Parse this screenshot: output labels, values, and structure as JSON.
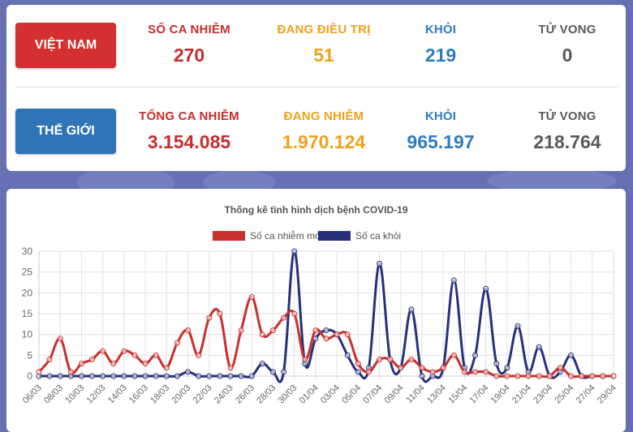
{
  "colors": {
    "red": "#c9302c",
    "navy": "#27307a",
    "vn_btn": "#d3302f",
    "world_btn": "#2f75b5"
  },
  "vietnam": {
    "label": "VIỆT NAM",
    "stats": [
      {
        "label": "SỐ CA NHIỄM",
        "value": "270"
      },
      {
        "label": "ĐANG ĐIỀU TRỊ",
        "value": "51"
      },
      {
        "label": "KHỎI",
        "value": "219"
      },
      {
        "label": "TỬ VONG",
        "value": "0"
      }
    ]
  },
  "world": {
    "label": "THẾ GIỚI",
    "stats": [
      {
        "label": "TỔNG CA NHIỄM",
        "value": "3.154.085"
      },
      {
        "label": "ĐANG NHIỄM",
        "value": "1.970.124"
      },
      {
        "label": "KHỎI",
        "value": "965.197"
      },
      {
        "label": "TỬ VONG",
        "value": "218.764"
      }
    ]
  },
  "chart_data": {
    "type": "line",
    "title": "Thống kê tình hình dịch bệnh COVID-19",
    "ylim": [
      0,
      30
    ],
    "yticks": [
      0,
      5,
      10,
      15,
      20,
      25,
      30
    ],
    "grid": true,
    "legend_position": "top",
    "x": [
      "06/03",
      "07/03",
      "08/03",
      "09/03",
      "10/03",
      "11/03",
      "12/03",
      "13/03",
      "14/03",
      "15/03",
      "16/03",
      "17/03",
      "18/03",
      "19/03",
      "20/03",
      "21/03",
      "22/03",
      "23/03",
      "24/03",
      "25/03",
      "26/03",
      "27/03",
      "28/03",
      "29/03",
      "30/03",
      "31/03",
      "01/04",
      "02/04",
      "03/04",
      "04/04",
      "05/04",
      "06/04",
      "07/04",
      "08/04",
      "09/04",
      "10/04",
      "11/04",
      "12/04",
      "13/04",
      "14/04",
      "15/04",
      "16/04",
      "17/04",
      "18/04",
      "19/04",
      "20/04",
      "21/04",
      "22/04",
      "23/04",
      "24/04",
      "25/04",
      "26/04",
      "27/04",
      "28/04",
      "29/04"
    ],
    "xtick_labels": [
      "06/03",
      "08/03",
      "10/03",
      "12/03",
      "14/03",
      "16/03",
      "18/03",
      "20/03",
      "22/03",
      "24/03",
      "26/03",
      "28/03",
      "30/03",
      "01/04",
      "03/04",
      "05/04",
      "07/04",
      "09/04",
      "11/04",
      "13/04",
      "15/04",
      "17/04",
      "19/04",
      "21/04",
      "23/04",
      "25/04",
      "27/04",
      "29/04"
    ],
    "series": [
      {
        "name": "Số ca nhiễm mới",
        "color": "#c9302c",
        "values": [
          1,
          4,
          9,
          1,
          3,
          4,
          6,
          3,
          6,
          5,
          3,
          5,
          2,
          8,
          11,
          5,
          14,
          15,
          2,
          11,
          19,
          10,
          11,
          14,
          15,
          4,
          11,
          9,
          10,
          10,
          3,
          1,
          4,
          4,
          2,
          4,
          2,
          1,
          2,
          5,
          1,
          1,
          1,
          0,
          0,
          0,
          0,
          0,
          0,
          2,
          0,
          0,
          0,
          0,
          0
        ]
      },
      {
        "name": "Số ca khỏi",
        "color": "#27307a",
        "values": [
          0,
          0,
          0,
          0,
          0,
          0,
          0,
          0,
          0,
          0,
          0,
          0,
          0,
          0,
          1,
          0,
          0,
          0,
          0,
          0,
          0,
          3,
          1,
          1,
          30,
          3,
          9,
          11,
          10,
          5,
          1,
          2,
          27,
          4,
          2,
          16,
          0,
          0,
          2,
          23,
          2,
          5,
          21,
          3,
          2,
          12,
          1,
          7,
          0,
          1,
          5,
          0,
          0,
          0,
          0
        ]
      }
    ]
  }
}
